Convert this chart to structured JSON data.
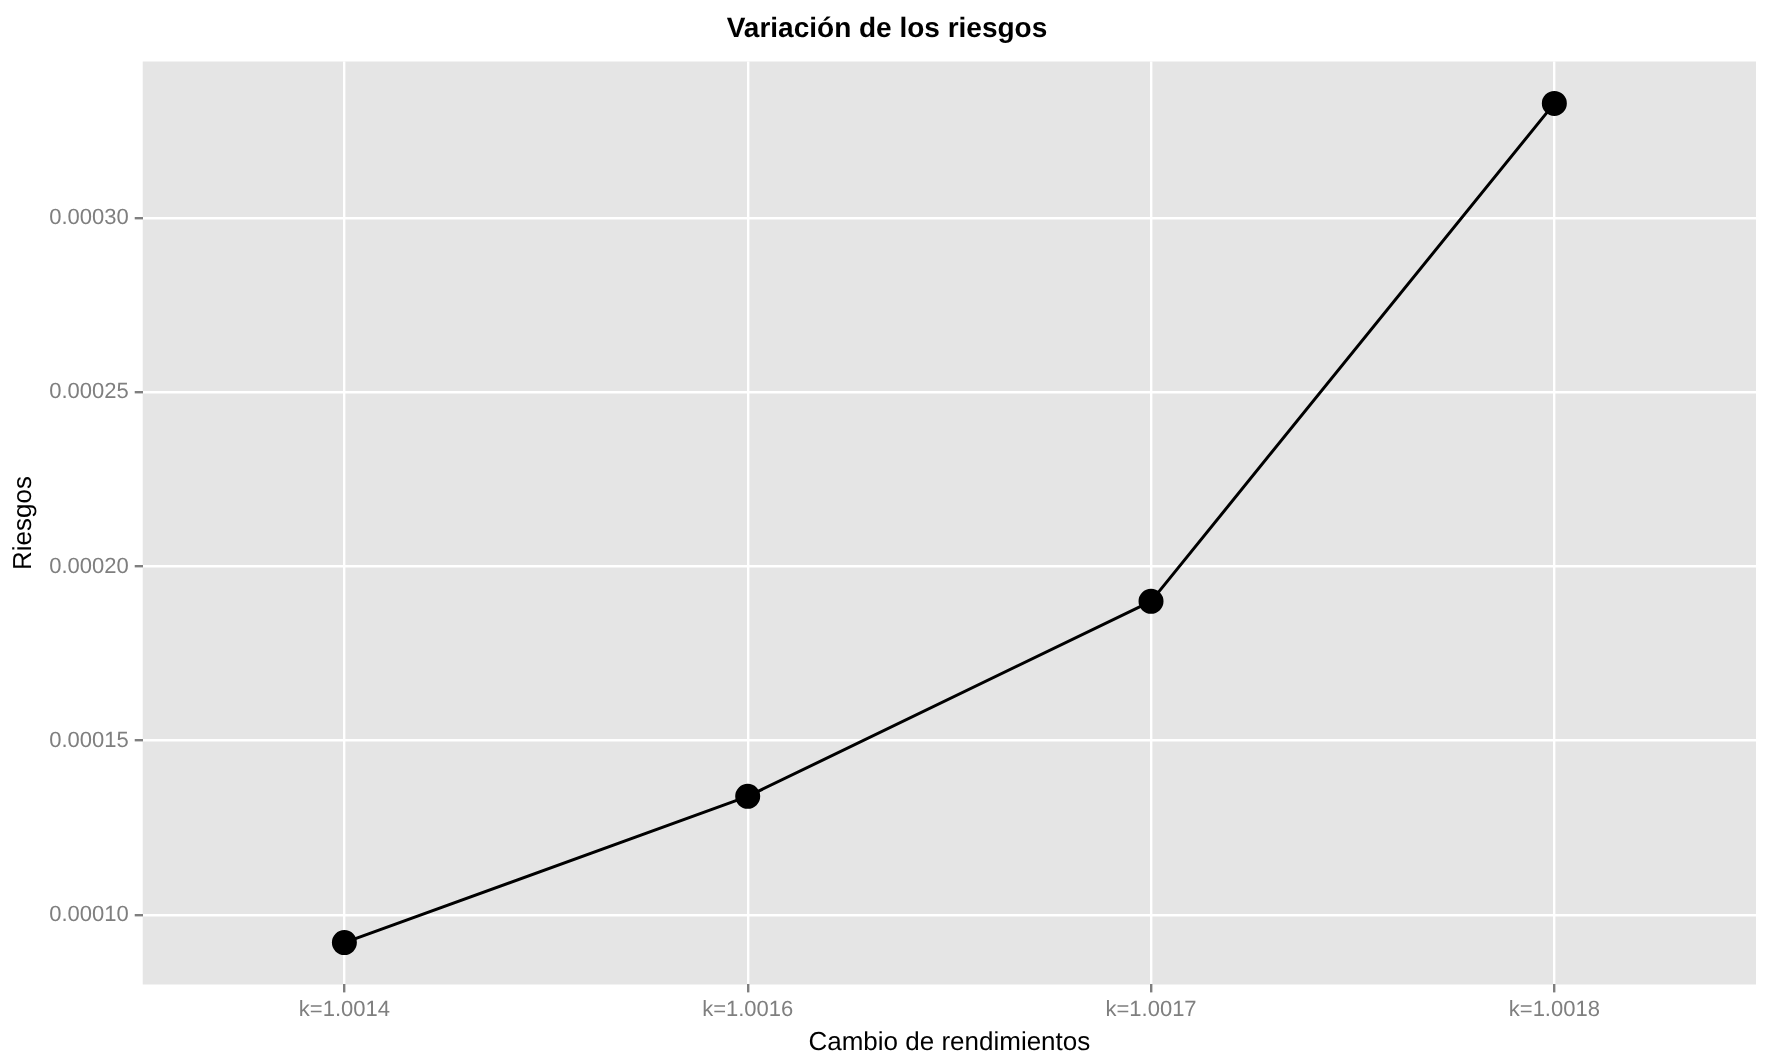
{
  "chart_data": {
    "type": "line",
    "title": "Variación de los riesgos",
    "xlabel": "Cambio de rendimientos",
    "ylabel": "Riesgos",
    "categories": [
      "k=1.0014",
      "k=1.0016",
      "k=1.0017",
      "k=1.0018"
    ],
    "series": [
      {
        "color": "#000000",
        "values": [
          9.2e-05,
          0.000134,
          0.00019,
          0.000333
        ]
      }
    ],
    "ylim": [
      8e-05,
      0.000345
    ],
    "yticks": [
      {
        "value": 0.0001,
        "label": "0.00010"
      },
      {
        "value": 0.00015,
        "label": "0.00015"
      },
      {
        "value": 0.0002,
        "label": "0.00020"
      },
      {
        "value": 0.00025,
        "label": "0.00025"
      },
      {
        "value": 0.0003,
        "label": "0.00030"
      }
    ],
    "grid": true,
    "legend": false,
    "marker": "circle",
    "line_style": "solid"
  }
}
